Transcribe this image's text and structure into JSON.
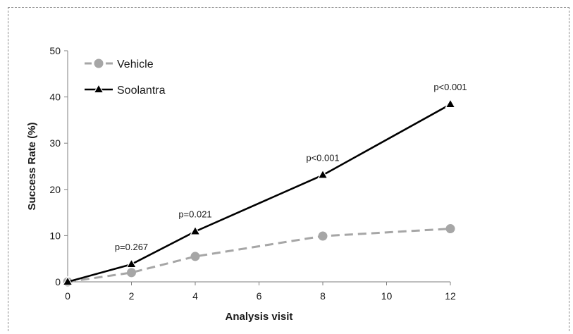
{
  "chart_data": {
    "type": "line",
    "xlabel": "Analysis visit",
    "ylabel": "Success Rate (%)",
    "xlim": [
      0,
      12
    ],
    "ylim": [
      0,
      50
    ],
    "x_ticks": [
      0,
      2,
      4,
      6,
      8,
      10,
      12
    ],
    "y_ticks": [
      0,
      10,
      20,
      30,
      40,
      50
    ],
    "grid": false,
    "legend_position": "top-left",
    "series": [
      {
        "name": "Vehicle",
        "color": "#a6a6a6",
        "line_style": "dashed",
        "marker": "circle",
        "x": [
          0,
          2,
          4,
          8,
          12
        ],
        "y": [
          0,
          2,
          5.5,
          9.9,
          11.5
        ]
      },
      {
        "name": "Soolantra",
        "color": "#000000",
        "line_style": "solid",
        "marker": "triangle",
        "x": [
          0,
          2,
          4,
          8,
          12
        ],
        "y": [
          0,
          3.8,
          10.9,
          23.1,
          38.4
        ]
      }
    ],
    "annotations": [
      {
        "x": 2,
        "y": 3.8,
        "text": "p=0.267"
      },
      {
        "x": 4,
        "y": 10.9,
        "text": "p=0.021"
      },
      {
        "x": 8,
        "y": 23.1,
        "text": "p<0.001"
      },
      {
        "x": 12,
        "y": 38.4,
        "text": "p<0.001"
      }
    ]
  }
}
